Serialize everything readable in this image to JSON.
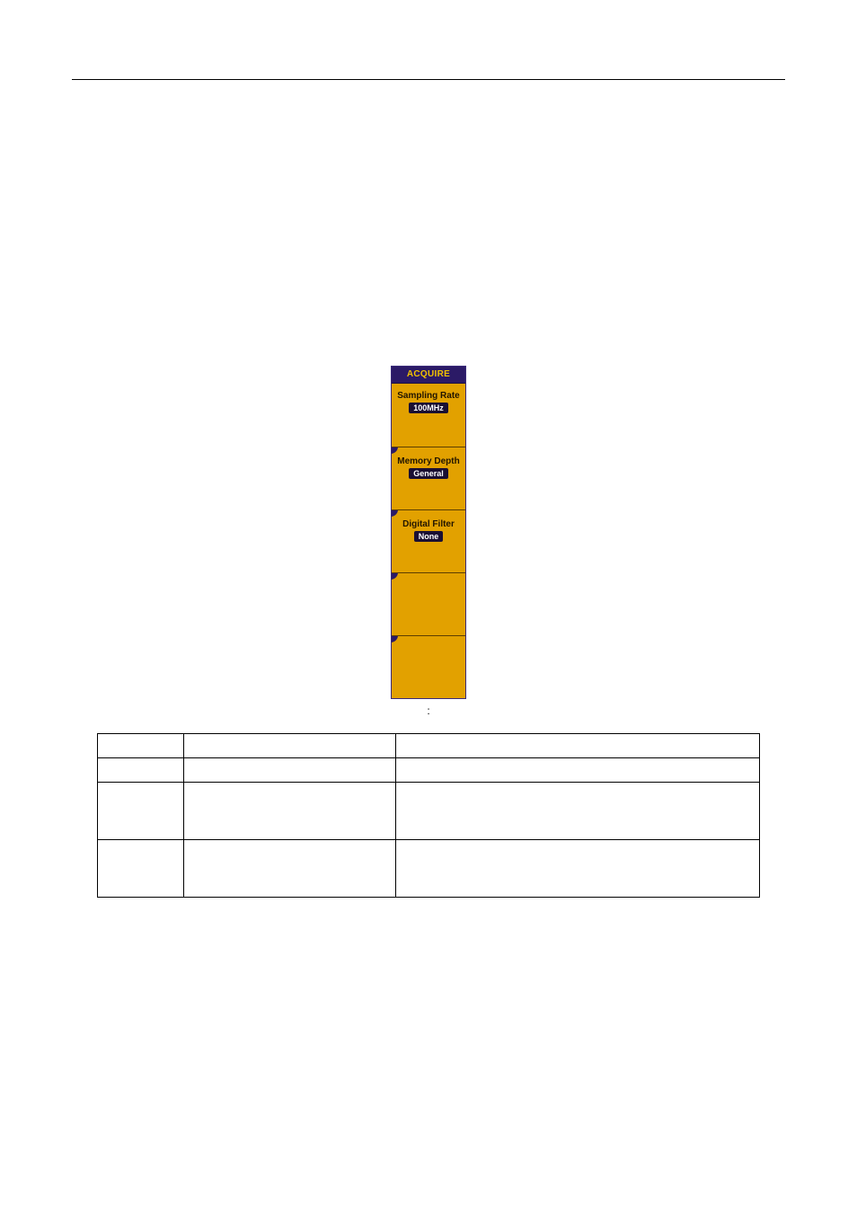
{
  "page": {
    "rule_color": "#000000",
    "background": "#ffffff"
  },
  "acquire_menu": {
    "title": "ACQUIRE",
    "panel_bg": "#e2a100",
    "panel_border": "#3a2a7a",
    "title_bg": "#2b1a66",
    "title_color": "#f2c200",
    "label_color": "#221500",
    "pill_bg": "#1a0f33",
    "pill_text_color": "#ffffff",
    "items": [
      {
        "label": "Sampling Rate",
        "value": "100MHz"
      },
      {
        "label": "Memory Depth",
        "value": "General"
      },
      {
        "label": "Digital Filter",
        "value": "None"
      },
      {
        "label": "",
        "value": ""
      },
      {
        "label": "",
        "value": ""
      }
    ]
  },
  "figure": {
    "caption": ":"
  },
  "table": {
    "columns": [
      "",
      "",
      ""
    ],
    "rows": [
      [
        "",
        "",
        ""
      ],
      [
        "",
        "",
        ""
      ],
      [
        "",
        "",
        ""
      ]
    ]
  }
}
